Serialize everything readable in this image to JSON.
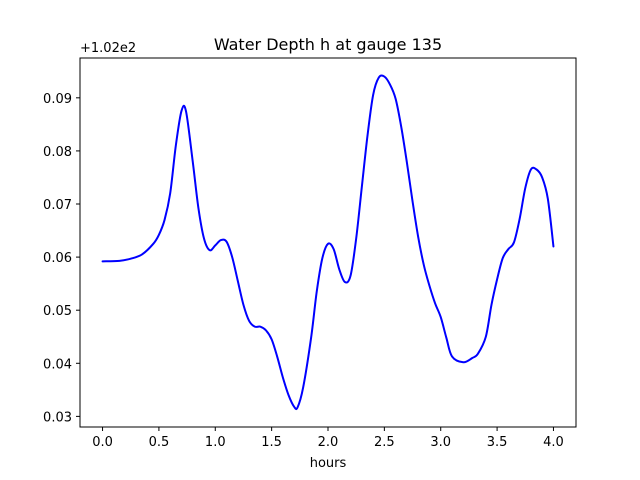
{
  "chart_data": {
    "type": "line",
    "title": "Water Depth h at gauge 135",
    "xlabel": "hours",
    "ylabel": "",
    "offset_label": "+1.02e2",
    "xlim": [
      -0.2,
      4.2
    ],
    "ylim": [
      0.028,
      0.0975
    ],
    "xticks": [
      0.0,
      0.5,
      1.0,
      1.5,
      2.0,
      2.5,
      3.0,
      3.5,
      4.0
    ],
    "xtick_labels": [
      "0.0",
      "0.5",
      "1.0",
      "1.5",
      "2.0",
      "2.5",
      "3.0",
      "3.5",
      "4.0"
    ],
    "yticks": [
      0.03,
      0.04,
      0.05,
      0.06,
      0.07,
      0.08,
      0.09
    ],
    "ytick_labels": [
      "0.03",
      "0.04",
      "0.05",
      "0.06",
      "0.07",
      "0.08",
      "0.09"
    ],
    "grid": false,
    "legend": "none",
    "series": [
      {
        "color": "#0000ff",
        "x": [
          0.0,
          0.15,
          0.25,
          0.35,
          0.45,
          0.5,
          0.55,
          0.6,
          0.65,
          0.7,
          0.74,
          0.8,
          0.85,
          0.9,
          0.95,
          1.0,
          1.05,
          1.1,
          1.15,
          1.2,
          1.25,
          1.3,
          1.35,
          1.4,
          1.45,
          1.5,
          1.55,
          1.6,
          1.65,
          1.7,
          1.73,
          1.78,
          1.85,
          1.9,
          1.95,
          2.0,
          2.05,
          2.1,
          2.15,
          2.2,
          2.25,
          2.3,
          2.35,
          2.4,
          2.45,
          2.5,
          2.55,
          2.6,
          2.65,
          2.7,
          2.75,
          2.8,
          2.85,
          2.9,
          2.95,
          3.0,
          3.05,
          3.1,
          3.2,
          3.28,
          3.33,
          3.4,
          3.45,
          3.5,
          3.55,
          3.6,
          3.65,
          3.7,
          3.75,
          3.8,
          3.85,
          3.9,
          3.95,
          4.0
        ],
        "y": [
          0.0592,
          0.0593,
          0.0597,
          0.0605,
          0.0625,
          0.0642,
          0.067,
          0.072,
          0.081,
          0.0875,
          0.0875,
          0.078,
          0.0693,
          0.0635,
          0.0613,
          0.0622,
          0.0632,
          0.0629,
          0.06,
          0.0555,
          0.051,
          0.048,
          0.0469,
          0.0469,
          0.0462,
          0.0445,
          0.0412,
          0.0373,
          0.034,
          0.0318,
          0.0317,
          0.0355,
          0.0448,
          0.0535,
          0.0598,
          0.0625,
          0.0615,
          0.0577,
          0.0553,
          0.0565,
          0.0635,
          0.0732,
          0.0828,
          0.0905,
          0.0938,
          0.094,
          0.0925,
          0.0898,
          0.0845,
          0.0778,
          0.0705,
          0.0638,
          0.0585,
          0.0546,
          0.0513,
          0.0487,
          0.0448,
          0.0413,
          0.0402,
          0.041,
          0.0418,
          0.045,
          0.051,
          0.0558,
          0.0598,
          0.0615,
          0.0628,
          0.0672,
          0.073,
          0.0765,
          0.0765,
          0.075,
          0.071,
          0.062
        ]
      }
    ]
  }
}
